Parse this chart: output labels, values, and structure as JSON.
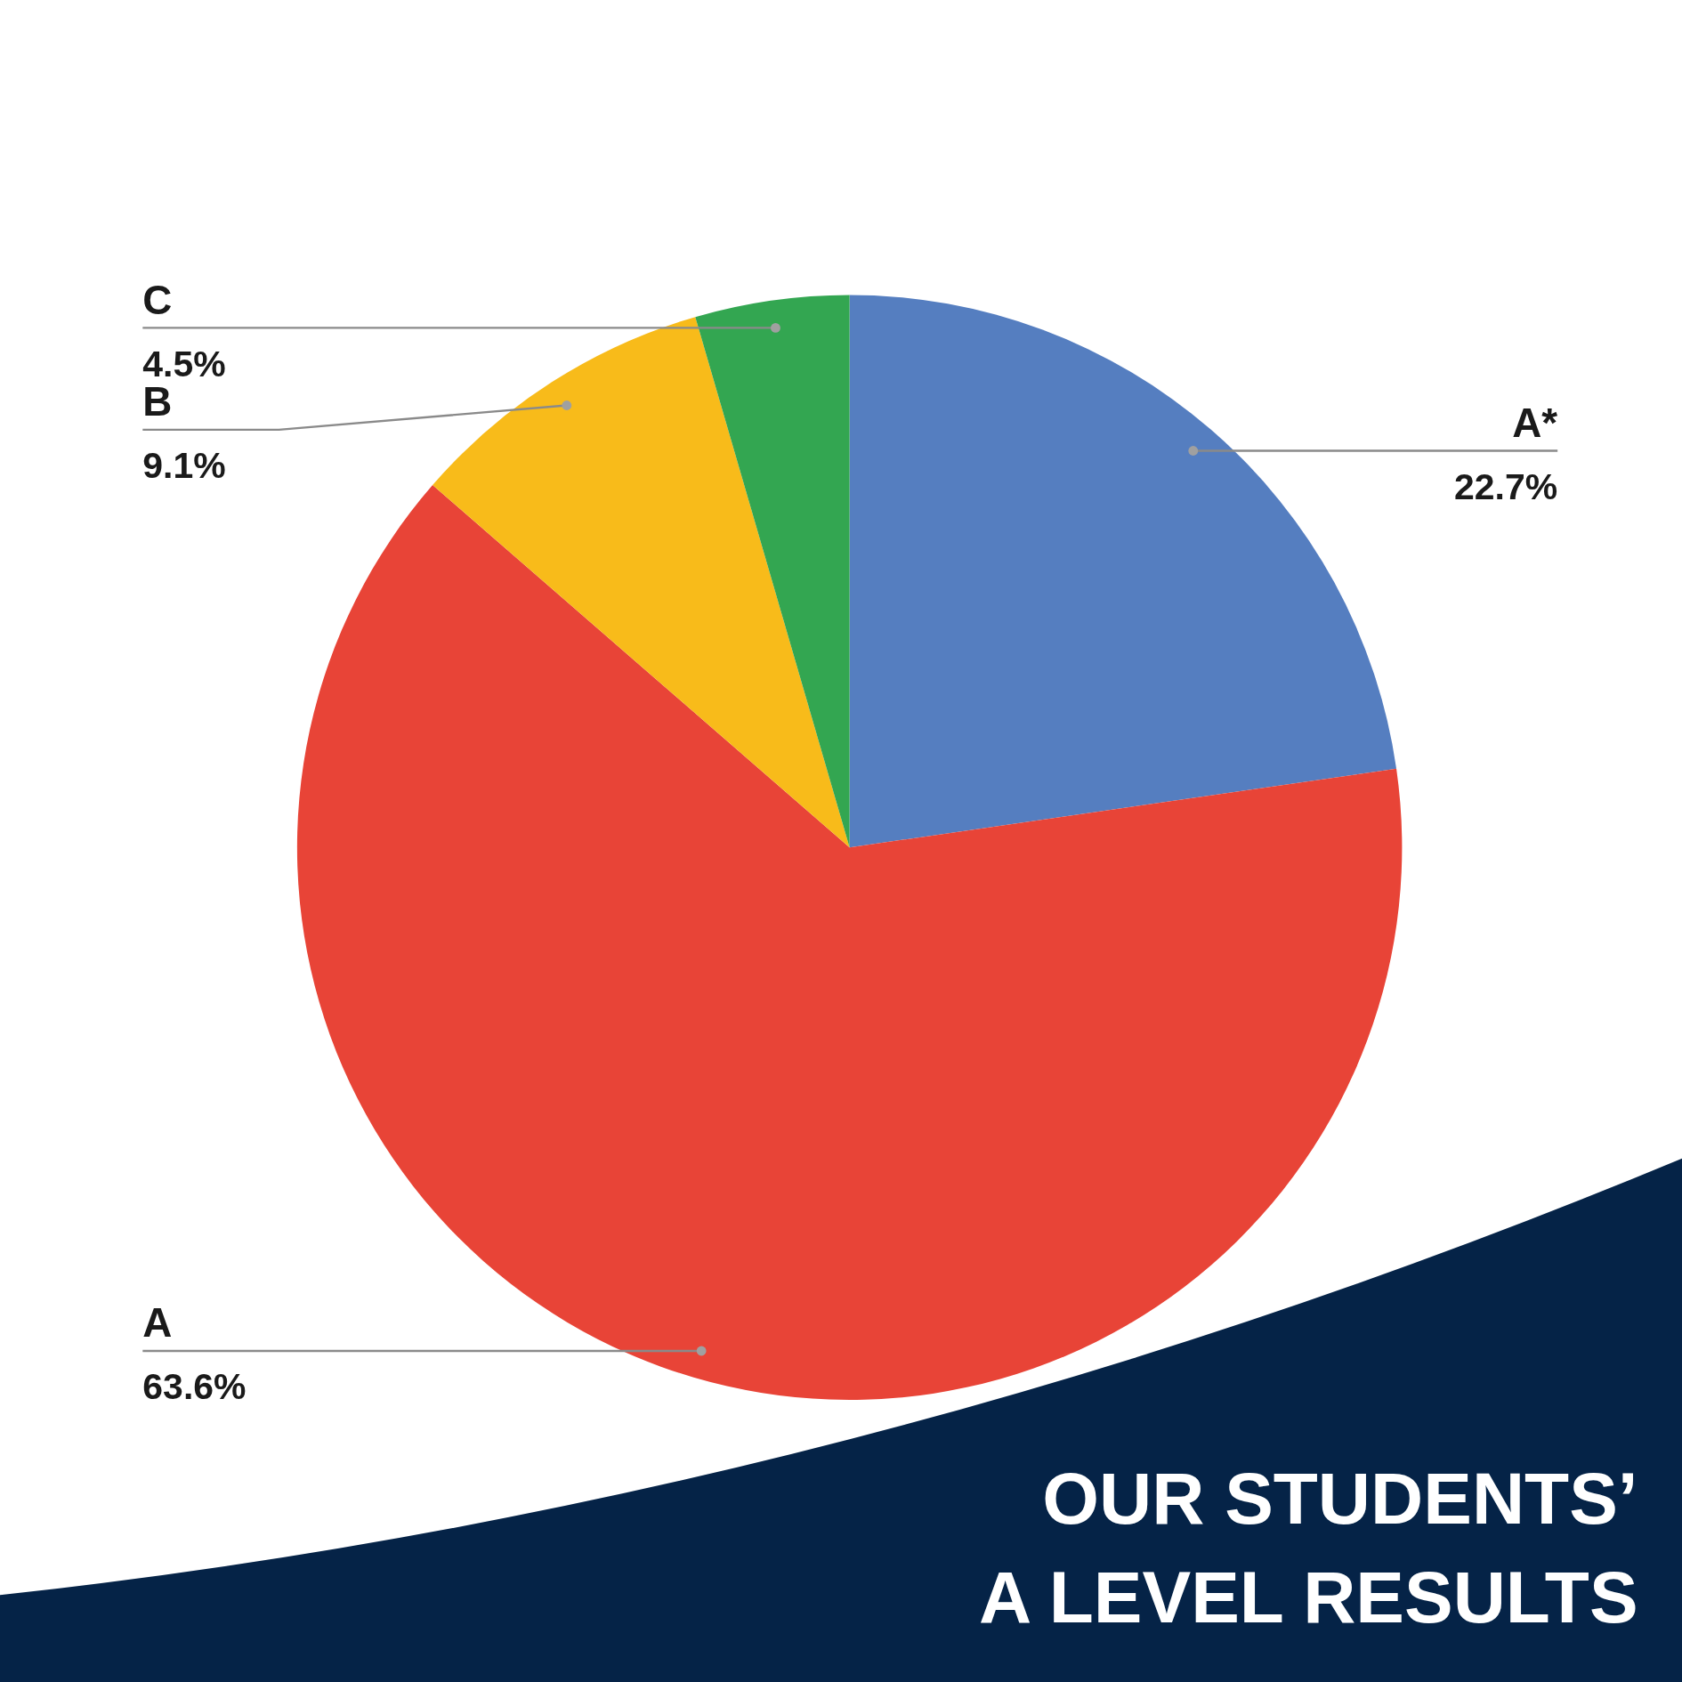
{
  "chart_data": {
    "type": "pie",
    "title": "OUR STUDENTS’\nA LEVEL RESULTS",
    "categories": [
      "A*",
      "A",
      "B",
      "C"
    ],
    "values": [
      22.7,
      63.6,
      9.1,
      4.5
    ],
    "colors": [
      "#557ec0",
      "#e84437",
      "#f8bb1a",
      "#33a651"
    ],
    "value_labels": [
      "22.7%",
      "63.6%",
      "9.1%",
      "4.5%"
    ]
  }
}
